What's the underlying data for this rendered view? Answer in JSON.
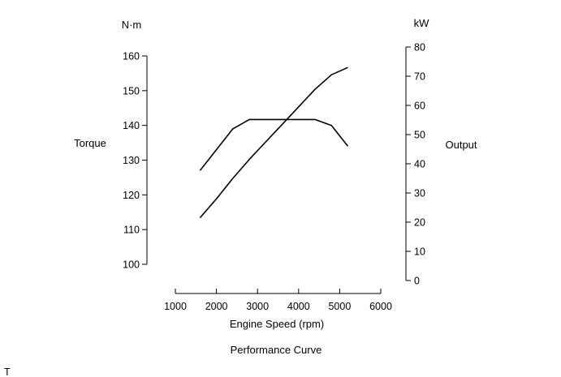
{
  "chart_data": {
    "type": "line",
    "title": "Performance Curve",
    "xlabel": "Engine Speed (rpm)",
    "xlim": [
      1000,
      6000
    ],
    "x_ticks": [
      1000,
      2000,
      3000,
      4000,
      5000,
      6000
    ],
    "left_axis": {
      "label": "Torque",
      "unit": "N·m",
      "ylim": [
        100,
        160
      ],
      "ticks": [
        100,
        110,
        120,
        130,
        140,
        150,
        160
      ]
    },
    "right_axis": {
      "label": "Output",
      "unit": "kW",
      "ylim": [
        0,
        80
      ],
      "ticks": [
        0,
        10,
        20,
        30,
        40,
        50,
        60,
        70,
        80
      ]
    },
    "series": [
      {
        "axis": "left",
        "x": [
          1600,
          2000,
          2400,
          2800,
          3200,
          3600,
          4000,
          4400,
          4800,
          5200
        ],
        "values": [
          127,
          133,
          139,
          141.7,
          141.7,
          141.7,
          141.7,
          141.7,
          140,
          134
        ]
      },
      {
        "axis": "right",
        "x": [
          1600,
          2000,
          2400,
          2800,
          3200,
          3600,
          4000,
          4400,
          4800,
          5200
        ],
        "values": [
          21.5,
          28,
          35,
          41.5,
          47.5,
          53.5,
          59.5,
          65.5,
          70.5,
          73
        ]
      }
    ],
    "grid": false,
    "legend": "none"
  },
  "footer_mark": "T"
}
